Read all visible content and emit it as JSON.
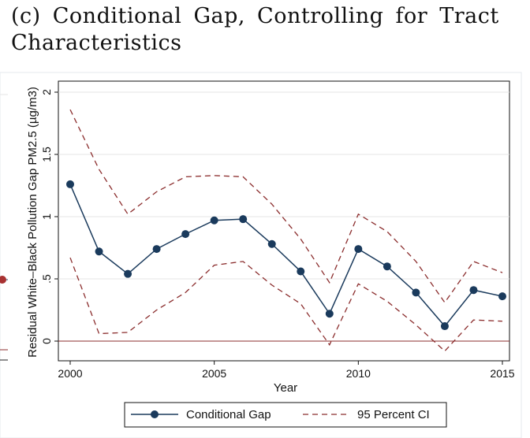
{
  "caption": "(c) Conditional Gap, Controlling for Tract Characteristics",
  "chart_data": {
    "type": "line",
    "xlabel": "Year",
    "ylabel": "Residual White–Black Pollution Gap PM2.5 (µg/m3)",
    "xlim": [
      2000,
      2015
    ],
    "ylim": [
      0,
      2
    ],
    "x_ticks": [
      "2000",
      "2005",
      "2010",
      "2015"
    ],
    "y_ticks": [
      "0",
      ".5",
      "1",
      "1.5",
      "2"
    ],
    "x": [
      2000,
      2001,
      2002,
      2003,
      2004,
      2005,
      2006,
      2007,
      2008,
      2009,
      2010,
      2011,
      2012,
      2013,
      2014,
      2015
    ],
    "series": [
      {
        "name": "Conditional Gap",
        "color": "#1a3a5c",
        "values": [
          1.26,
          0.72,
          0.54,
          0.74,
          0.86,
          0.97,
          0.98,
          0.78,
          0.56,
          0.22,
          0.74,
          0.6,
          0.39,
          0.12,
          0.41,
          0.36
        ]
      },
      {
        "name": "95 Percent CI",
        "color": "#8b2d2d",
        "style": "dashed",
        "values": [
          1.86,
          1.38,
          1.02,
          1.2,
          1.32,
          1.33,
          1.32,
          1.1,
          0.82,
          0.47,
          1.02,
          0.88,
          0.64,
          0.31,
          0.64,
          0.55
        ]
      },
      {
        "name": "95 Percent CI lower",
        "color": "#8b2d2d",
        "style": "dashed",
        "values": [
          0.67,
          0.06,
          0.07,
          0.25,
          0.39,
          0.61,
          0.64,
          0.45,
          0.3,
          -0.03,
          0.46,
          0.32,
          0.13,
          -0.08,
          0.17,
          0.16
        ]
      }
    ],
    "reference_line": 0,
    "reference_color": "#8b2d2d",
    "grid": true,
    "legend_position": "bottom",
    "legend": [
      "Conditional Gap",
      "95 Percent CI"
    ]
  }
}
